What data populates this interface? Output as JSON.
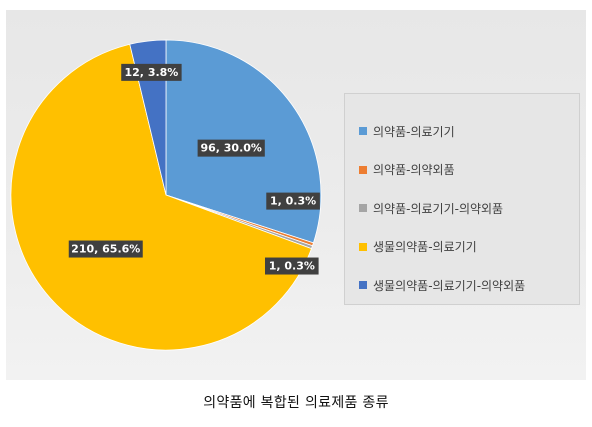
{
  "chart_data": {
    "type": "pie",
    "title": "",
    "categories": [
      "의약품-의료기기",
      "의약품-의약외품",
      "의약품-의료기기-의약외품",
      "생물의약품-의료기기",
      "생물의약품-의료기기-의약외품"
    ],
    "values": [
      96,
      1,
      1,
      210,
      12
    ],
    "data_labels": [
      "96, 30.0%",
      "1, 0.3%",
      "1, 0.3%",
      "210, 65.6%",
      "12, 3.8%"
    ],
    "colors": [
      "#5B9BD5",
      "#ED7D31",
      "#A5A5A5",
      "#FFC000",
      "#4472C4"
    ],
    "legend_position": "right",
    "start_angle": "12 o'clock, clockwise"
  },
  "caption": "의약품에 복합된 의료제품 종류"
}
